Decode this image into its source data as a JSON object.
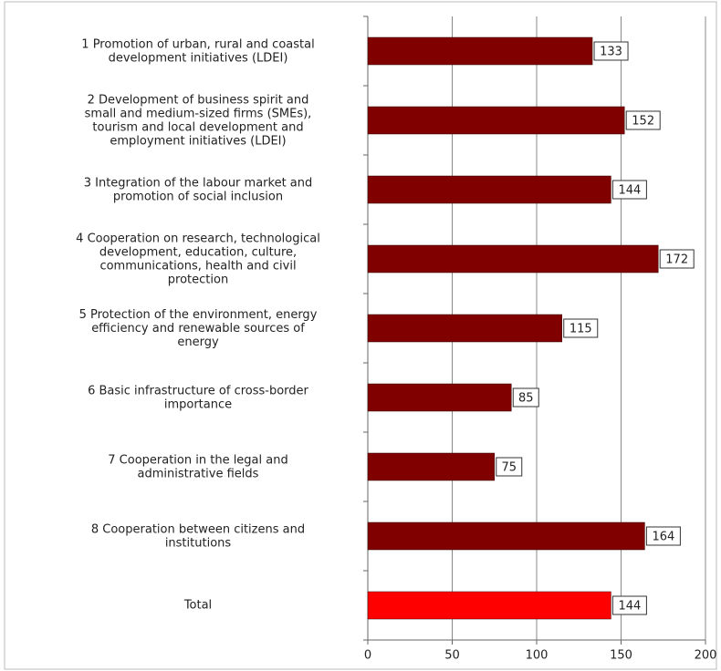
{
  "chart_data": {
    "type": "bar",
    "orientation": "horizontal",
    "categories": [
      "1 Promotion of urban, rural and coastal\ndevelopment initiatives (LDEI)",
      "2 Development of business spirit and\nsmall and medium-sized firms (SMEs),\ntourism and local development and\nemployment initiatives (LDEI)",
      "3 Integration of the labour market and\npromotion of social inclusion",
      "4 Cooperation on research, technological\ndevelopment, education, culture,\ncommunications, health and civil\nprotection",
      "5 Protection of the environment, energy\nefficiency and renewable sources of\nenergy",
      "6 Basic infrastructure of cross-border\nimportance",
      "7 Cooperation in the legal and\nadministrative fields",
      "8 Cooperation between citizens and\ninstitutions",
      "Total"
    ],
    "values": [
      133,
      152,
      144,
      172,
      115,
      85,
      75,
      164,
      144
    ],
    "colors": [
      "#800000",
      "#800000",
      "#800000",
      "#800000",
      "#800000",
      "#800000",
      "#800000",
      "#800000",
      "#ff0000"
    ],
    "xlim": [
      0,
      200
    ],
    "xticks": [
      0,
      50,
      100,
      150,
      200
    ],
    "grid": true
  }
}
